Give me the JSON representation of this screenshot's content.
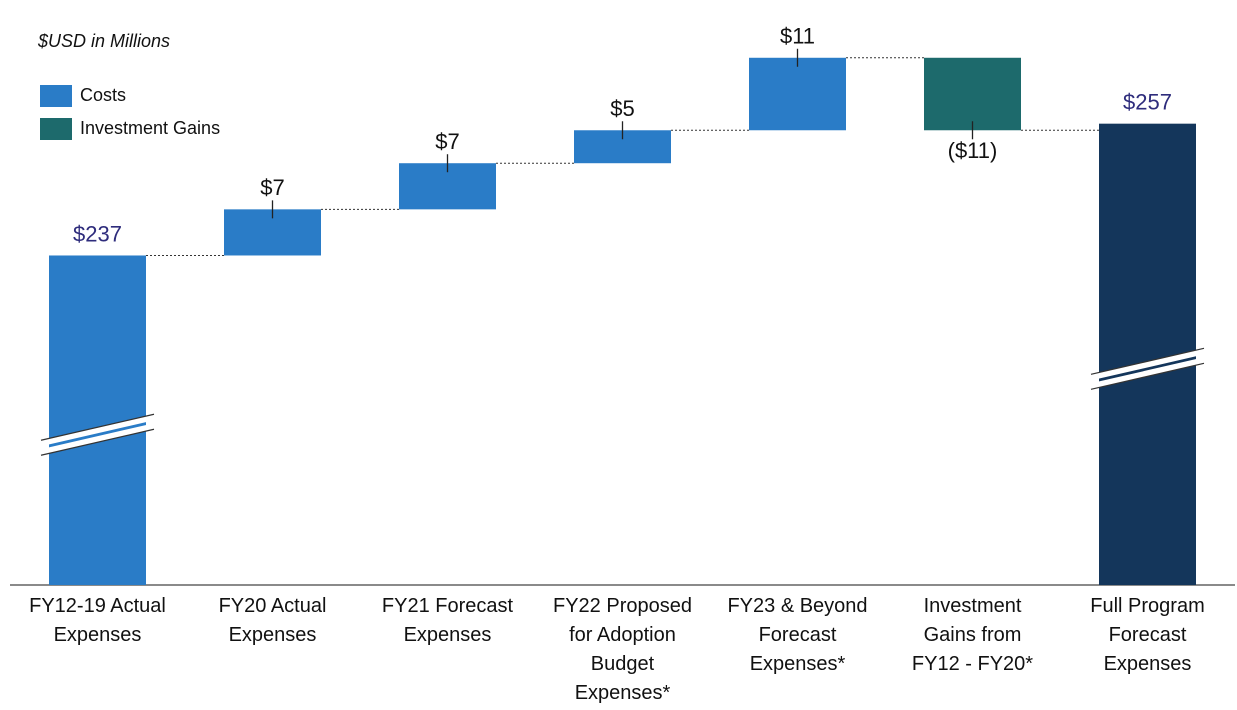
{
  "chart_data": {
    "type": "waterfall",
    "title": "$USD in Millions",
    "categories": [
      "FY12-19 Actual\nExpenses",
      "FY20 Actual\nExpenses",
      "FY21 Forecast\nExpenses",
      "FY22 Proposed\nfor Adoption\nBudget\nExpenses*",
      "FY23 & Beyond\nForecast\nExpenses*",
      "Investment\nGains from\nFY12 - FY20*",
      "Full Program\nForecast\nExpenses"
    ],
    "values": [
      237,
      7,
      7,
      5,
      11,
      -11,
      257
    ],
    "value_labels": [
      "$237",
      "$7",
      "$7",
      "$5",
      "$11",
      "($11)",
      "$257"
    ],
    "measure": [
      "absolute",
      "relative",
      "relative",
      "relative",
      "relative",
      "relative",
      "total"
    ],
    "colors": [
      "#2a7cc7",
      "#2a7cc7",
      "#2a7cc7",
      "#2a7cc7",
      "#2a7cc7",
      "#1d6a6c",
      "#14365b"
    ],
    "legend": [
      {
        "name": "Costs",
        "color": "#2a7cc7"
      },
      {
        "name": "Investment Gains",
        "color": "#1d6a6c"
      }
    ],
    "ylim": [
      187,
      270
    ],
    "axis_break": true
  }
}
